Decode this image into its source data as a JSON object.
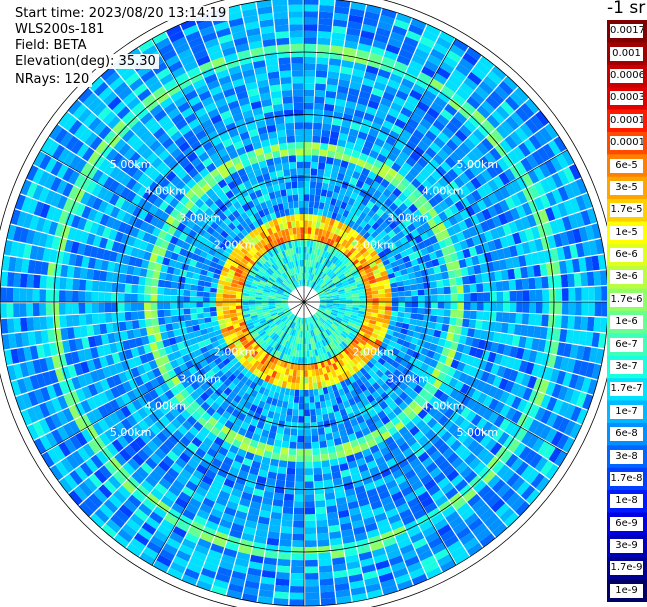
{
  "header": {
    "start_time": "Start time: 2023/08/20 13:14:19",
    "instrument": "WLS200s-181",
    "field": "Field: BETA",
    "elevation": "Elevation(deg): 35.30",
    "nrays": "NRays: 120"
  },
  "colorbar": {
    "unit": "-1 sr",
    "labels": [
      "0.0017",
      "0.001",
      "0.0006",
      "0.0003",
      "0.00017",
      "0.0001",
      "6e-5",
      "3e-5",
      "1.7e-5",
      "1e-5",
      "6e-6",
      "3e-6",
      "1.7e-6",
      "1e-6",
      "6e-7",
      "3e-7",
      "1.7e-7",
      "1e-7",
      "6e-8",
      "3e-8",
      "1.7e-8",
      "1e-8",
      "6e-9",
      "3e-9",
      "1.7e-9",
      "1e-9"
    ],
    "colors": [
      "#7f0000",
      "#a00000",
      "#c80000",
      "#e00000",
      "#ff1a00",
      "#ff4a00",
      "#ff7f00",
      "#ffa500",
      "#ffd000",
      "#ffff00",
      "#e0ff1a",
      "#b8ff40",
      "#90ff66",
      "#66ff90",
      "#40ffb8",
      "#1affe0",
      "#00e0ff",
      "#00b8ff",
      "#0090ff",
      "#0066ff",
      "#0040ff",
      "#001aff",
      "#0000e0",
      "#0000b8",
      "#000090",
      "#000066"
    ]
  },
  "chart_data": {
    "type": "heatmap",
    "projection": "polar PPI",
    "field": "BETA",
    "nrays": 120,
    "elevation_deg": 35.3,
    "range_rings_km": [
      1.0,
      2.0,
      3.0,
      4.0,
      5.0
    ],
    "ring_labels": [
      "2.00km",
      "3.00km",
      "4.00km",
      "5.00km"
    ],
    "colorbar_scale": "log",
    "colorbar_range": [
      1e-09,
      0.0017
    ]
  }
}
